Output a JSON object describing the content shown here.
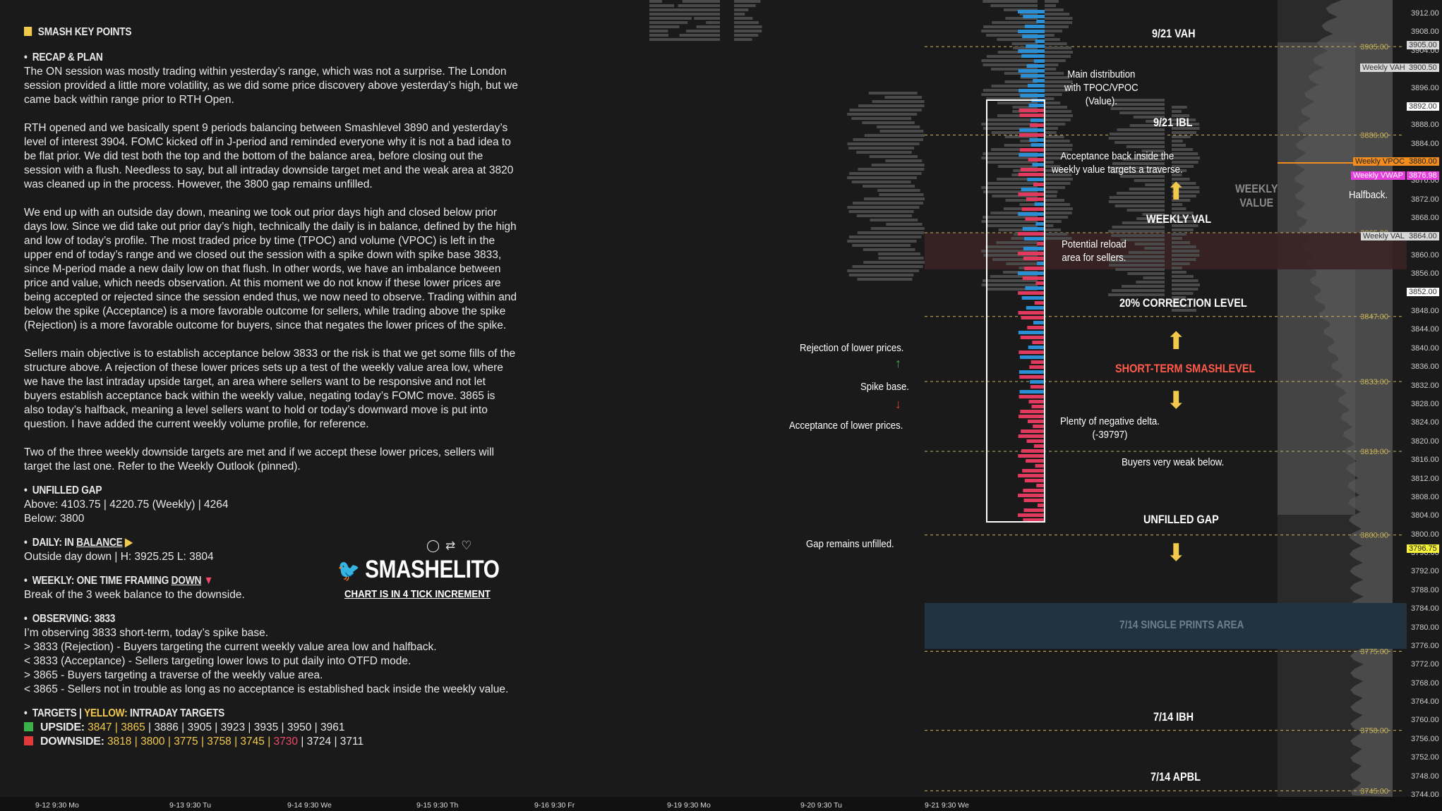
{
  "notes": {
    "title": "SMASH KEY POINTS",
    "recap_heading": "RECAP & PLAN",
    "paragraphs": [
      "The ON session was mostly trading within yesterday’s range, which was not a surprise. The London session provided a little more volatility, as we did some price discovery above yesterday’s high, but we came back within range prior to RTH Open.",
      "RTH opened and we basically spent 9 periods balancing between Smashlevel 3890 and yesterday’s level of interest 3904. FOMC kicked off in J-period and reminded everyone why it is not a bad idea to be flat prior. We did test both the top and the bottom of the balance area, before closing out the session with a flush. Needless to say, but all intraday downside target met and the weak area at 3820 was cleaned up in the process. However, the 3800 gap remains unfilled.",
      "We end up with an outside day down, meaning we took out prior days high and closed below prior days low. Since we did take out prior day’s high, technically the daily is in balance, defined by the high and low of today’s profile. The most traded price by time (TPOC) and volume (VPOC) is left in the upper end of today’s range and we closed out the session with a spike down with spike base 3833, since M-period made a new daily low on that flush. In other words, we have an imbalance between price and value, which needs observation. At this moment we do not know if these lower prices are being accepted or rejected since the session ended thus, we now need to observe. Trading within and below the spike (Acceptance) is a more favorable outcome for sellers, while trading above the spike (Rejection) is a more favorable outcome for buyers, since that negates the lower prices of the spike.",
      "Sellers main objective is to establish acceptance below 3833 or the risk is that we get some fills of the structure above. A rejection of these lower prices sets up a test of the weekly value area low, where we have the last intraday upside target, an area where sellers want to be responsive and not let buyers establish acceptance back within the weekly value, negating today’s FOMC move. 3865 is also today’s halfback, meaning a level sellers want to hold or today’s downward move is put into question. I have added the current weekly volume profile, for reference.",
      "Two of the three weekly downside targets are met and if we accept these lower prices, sellers will target the last one. Refer to the Weekly Outlook (pinned)."
    ],
    "gap_heading": "UNFILLED GAP",
    "gap_above": "Above: 4103.75 | 4220.75 (Weekly) | 4264",
    "gap_below": "Below: 3800",
    "daily_prefix": "DAILY: IN ",
    "daily_word": "BALANCE",
    "daily_text": "Outside day down | H: 3925.25 L: 3804",
    "weekly_prefix": "WEEKLY: ONE TIME FRAMING ",
    "weekly_word": "DOWN",
    "weekly_text": "Break of the 3 week balance to the downside.",
    "observing_heading": "OBSERVING: 3833",
    "observing_lines": [
      "I’m observing 3833 short-term, today’s spike base.",
      "> 3833 (Rejection) - Buyers targeting the current weekly value area low and halfback.",
      "< 3833 (Acceptance) - Sellers targeting lower lows to put daily into OTFD mode.",
      "> 3865 - Buyers targeting a traverse of the weekly value area.",
      "< 3865 - Sellers not in trouble as long as no acceptance is established back inside the weekly value."
    ],
    "targets_prefix": "TARGETS  |  ",
    "targets_yellow": "YELLOW:",
    "targets_suffix": " INTRADAY TARGETS",
    "upside_label": "UPSIDE:",
    "upside_yellow": " 3847 | 3865",
    "upside_rest": " | 3886 | 3905 | 3923 | 3935 | 3950 | 3961",
    "downside_label": "DOWNSIDE:",
    "downside_yellow": " 3818 | 3800 | 3775 | 3758 | 3745 |",
    "downside_red": " 3730",
    "downside_rest": " | 3724 | 3711"
  },
  "brand": {
    "name": "SMASHELITO",
    "subtitle": "CHART IS IN 4 TICK INCREMENT",
    "actions": [
      "reply-icon",
      "retweet-icon",
      "heart-icon"
    ]
  },
  "chart": {
    "right_labels": {
      "vah": "9/21 VAH",
      "ibl": "9/21 IBL",
      "weekly_val": "WEEKLY VAL",
      "correction": "20% CORRECTION LEVEL",
      "short_term": "SHORT-TERM SMASHLEVEL",
      "buyers_weak": "Buyers very weak below.",
      "unfilled_gap": "UNFILLED GAP",
      "single_prints": "7/14 SINGLE PRINTS AREA",
      "ibh": "7/14 IBH",
      "apbl": "7/14 APBL",
      "weekly_value": "WEEKLY\nVALUE",
      "halfback": "Halfback."
    },
    "annotations": {
      "main_dist": "Main distribution\nwith TPOC/VPOC\n(Value).",
      "acceptance_traverse": "Acceptance back inside the\nweekly value targets a traverse.",
      "reload": "Potential reload\narea for sellers.",
      "neg_delta": "Plenty of negative delta.\n(-39797)",
      "rejection": "Rejection of lower prices.",
      "spike_base": "Spike base.",
      "acceptance": "Acceptance of lower prices.",
      "gap_unfilled": "Gap remains unfilled."
    },
    "levels": [
      "3905.00",
      "3886.00",
      "3865.00",
      "3847.00",
      "3833.00",
      "3818.00",
      "3800.00",
      "3775.00",
      "3758.00",
      "3745.00"
    ],
    "price_axis": [
      "3912.00",
      "3908.00",
      "3904.00",
      "3900.00",
      "3896.00",
      "3892.00",
      "3888.00",
      "3884.00",
      "3880.00",
      "3876.00",
      "3872.00",
      "3868.00",
      "3864.00",
      "3860.00",
      "3856.00",
      "3852.00",
      "3848.00",
      "3844.00",
      "3840.00",
      "3836.00",
      "3832.00",
      "3828.00",
      "3824.00",
      "3820.00",
      "3816.00",
      "3812.00",
      "3808.00",
      "3804.00",
      "3800.00",
      "3796.00",
      "3792.00",
      "3788.00",
      "3784.00",
      "3780.00",
      "3776.00",
      "3772.00",
      "3768.00",
      "3764.00",
      "3760.00",
      "3756.00",
      "3752.00",
      "3748.00",
      "3744.00"
    ],
    "tags": {
      "weekly_vah": "Weekly VAH",
      "weekly_vah_px": "3900.50",
      "px_3905": "3905.00",
      "px_3892": "3892.00",
      "weekly_vpoc": "Weekly VPOC",
      "weekly_vpoc_px": "3880.00",
      "weekly_vwap": "Weekly VWAP",
      "weekly_vwap_px": "3876.98",
      "weekly_val": "Weekly VAL",
      "weekly_val_px": "3864.00",
      "px_3852": "3852.00",
      "last_px": "3796.75"
    },
    "dates": [
      "9-12  9:30 Mo",
      "9-13  9:30 Tu",
      "9-14  9:30 We",
      "9-15  9:30 Th",
      "9-16  9:30 Fr",
      "9-19  9:30 Mo",
      "9-20  9:30 Tu",
      "9-21  9:30 We"
    ],
    "colors": {
      "accent_yellow": "#f2c94c",
      "sell": "#e23a5e",
      "buy": "#2b8fd6",
      "orange": "#f28c1e",
      "vwap": "#e83ee0"
    }
  }
}
